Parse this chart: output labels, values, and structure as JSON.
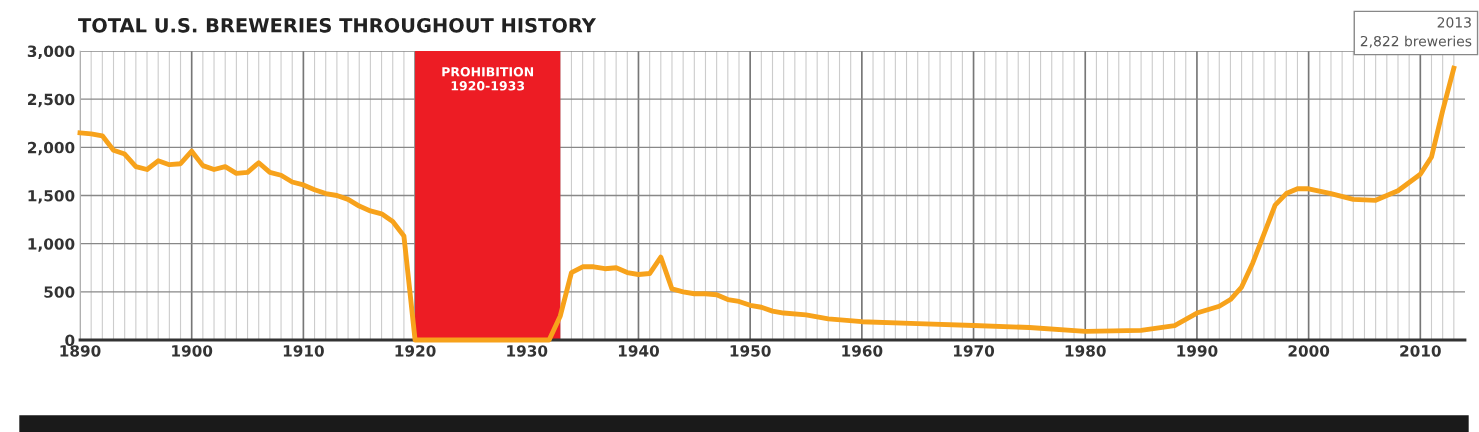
{
  "chart_data": {
    "type": "line",
    "title": "TOTAL U.S. BREWERIES THROUGHOUT HISTORY",
    "series": [
      {
        "color": "#f7a21b",
        "x": [
          1890,
          1891,
          1892,
          1893,
          1894,
          1895,
          1896,
          1897,
          1898,
          1899,
          1900,
          1901,
          1902,
          1903,
          1904,
          1905,
          1906,
          1907,
          1908,
          1909,
          1910,
          1911,
          1912,
          1913,
          1914,
          1915,
          1916,
          1917,
          1918,
          1919,
          1920,
          1925,
          1932,
          1933,
          1934,
          1935,
          1936,
          1937,
          1938,
          1939,
          1940,
          1941,
          1942,
          1943,
          1944,
          1945,
          1946,
          1947,
          1948,
          1949,
          1950,
          1951,
          1952,
          1953,
          1955,
          1957,
          1960,
          1965,
          1970,
          1975,
          1980,
          1985,
          1988,
          1990,
          1992,
          1993,
          1994,
          1995,
          1996,
          1997,
          1998,
          1999,
          2000,
          2002,
          2004,
          2006,
          2008,
          2010,
          2011,
          2012,
          2013
        ],
        "values": [
          2150,
          2140,
          2120,
          1970,
          1930,
          1800,
          1770,
          1860,
          1820,
          1830,
          1960,
          1810,
          1770,
          1800,
          1730,
          1740,
          1840,
          1740,
          1710,
          1640,
          1610,
          1560,
          1520,
          1500,
          1460,
          1390,
          1340,
          1310,
          1230,
          1080,
          0,
          0,
          0,
          250,
          700,
          760,
          760,
          740,
          750,
          700,
          680,
          690,
          860,
          530,
          500,
          480,
          480,
          470,
          420,
          400,
          360,
          340,
          300,
          280,
          260,
          220,
          190,
          170,
          150,
          130,
          90,
          100,
          150,
          280,
          350,
          420,
          550,
          800,
          1100,
          1400,
          1520,
          1570,
          1570,
          1520,
          1460,
          1450,
          1550,
          1720,
          1900,
          2380,
          2822
        ]
      }
    ],
    "xlim": [
      1890,
      2014
    ],
    "xticks": [
      {
        "value": 1890,
        "label": "1890"
      },
      {
        "value": 1891,
        "label": null
      },
      {
        "value": 1892,
        "label": null
      },
      {
        "value": 1893,
        "label": null
      },
      {
        "value": 1894,
        "label": null
      },
      {
        "value": 1895,
        "label": null
      },
      {
        "value": 1896,
        "label": null
      },
      {
        "value": 1897,
        "label": null
      },
      {
        "value": 1898,
        "label": null
      },
      {
        "value": 1899,
        "label": null
      },
      {
        "value": 1900,
        "label": "1900"
      },
      {
        "value": 1901,
        "label": null
      },
      {
        "value": 1902,
        "label": null
      },
      {
        "value": 1903,
        "label": null
      },
      {
        "value": 1904,
        "label": null
      },
      {
        "value": 1905,
        "label": null
      },
      {
        "value": 1906,
        "label": null
      },
      {
        "value": 1907,
        "label": null
      },
      {
        "value": 1908,
        "label": null
      },
      {
        "value": 1909,
        "label": null
      },
      {
        "value": 1910,
        "label": "1910"
      },
      {
        "value": 1911,
        "label": null
      },
      {
        "value": 1912,
        "label": null
      },
      {
        "value": 1913,
        "label": null
      },
      {
        "value": 1914,
        "label": null
      },
      {
        "value": 1915,
        "label": null
      },
      {
        "value": 1916,
        "label": null
      },
      {
        "value": 1917,
        "label": null
      },
      {
        "value": 1918,
        "label": null
      },
      {
        "value": 1919,
        "label": null
      },
      {
        "value": 1920,
        "label": "1920"
      },
      {
        "value": 1930,
        "label": "1930"
      },
      {
        "value": 1933,
        "label": null
      },
      {
        "value": 1934,
        "label": null
      },
      {
        "value": 1935,
        "label": null
      },
      {
        "value": 1936,
        "label": null
      },
      {
        "value": 1937,
        "label": null
      },
      {
        "value": 1938,
        "label": null
      },
      {
        "value": 1939,
        "label": null
      },
      {
        "value": 1940,
        "label": "1940"
      },
      {
        "value": 1941,
        "label": null
      },
      {
        "value": 1942,
        "label": null
      },
      {
        "value": 1943,
        "label": null
      },
      {
        "value": 1944,
        "label": null
      },
      {
        "value": 1945,
        "label": null
      },
      {
        "value": 1946,
        "label": null
      },
      {
        "value": 1947,
        "label": null
      },
      {
        "value": 1948,
        "label": null
      },
      {
        "value": 1949,
        "label": null
      },
      {
        "value": 1950,
        "label": "1950"
      },
      {
        "value": 1951,
        "label": null
      },
      {
        "value": 1952,
        "label": null
      },
      {
        "value": 1953,
        "label": null
      },
      {
        "value": 1954,
        "label": null
      },
      {
        "value": 1955,
        "label": null
      },
      {
        "value": 1956,
        "label": null
      },
      {
        "value": 1957,
        "label": null
      },
      {
        "value": 1958,
        "label": null
      },
      {
        "value": 1959,
        "label": null
      },
      {
        "value": 1960,
        "label": "1960"
      },
      {
        "value": 1961,
        "label": null
      },
      {
        "value": 1962,
        "label": null
      },
      {
        "value": 1963,
        "label": null
      },
      {
        "value": 1964,
        "label": null
      },
      {
        "value": 1965,
        "label": null
      },
      {
        "value": 1966,
        "label": null
      },
      {
        "value": 1967,
        "label": null
      },
      {
        "value": 1968,
        "label": null
      },
      {
        "value": 1969,
        "label": null
      },
      {
        "value": 1970,
        "label": "1970"
      },
      {
        "value": 1971,
        "label": null
      },
      {
        "value": 1972,
        "label": null
      },
      {
        "value": 1973,
        "label": null
      },
      {
        "value": 1974,
        "label": null
      },
      {
        "value": 1975,
        "label": null
      },
      {
        "value": 1976,
        "label": null
      },
      {
        "value": 1977,
        "label": null
      },
      {
        "value": 1978,
        "label": null
      },
      {
        "value": 1979,
        "label": null
      },
      {
        "value": 1980,
        "label": "1980"
      },
      {
        "value": 1981,
        "label": null
      },
      {
        "value": 1982,
        "label": null
      },
      {
        "value": 1983,
        "label": null
      },
      {
        "value": 1984,
        "label": null
      },
      {
        "value": 1985,
        "label": null
      },
      {
        "value": 1986,
        "label": null
      },
      {
        "value": 1987,
        "label": null
      },
      {
        "value": 1988,
        "label": null
      },
      {
        "value": 1989,
        "label": null
      },
      {
        "value": 1990,
        "label": "1990"
      },
      {
        "value": 1991,
        "label": null
      },
      {
        "value": 1992,
        "label": null
      },
      {
        "value": 1993,
        "label": null
      },
      {
        "value": 1994,
        "label": null
      },
      {
        "value": 1995,
        "label": null
      },
      {
        "value": 1996,
        "label": null
      },
      {
        "value": 1997,
        "label": null
      },
      {
        "value": 1998,
        "label": null
      },
      {
        "value": 1999,
        "label": null
      },
      {
        "value": 2000,
        "label": "2000"
      },
      {
        "value": 2001,
        "label": null
      },
      {
        "value": 2002,
        "label": null
      },
      {
        "value": 2003,
        "label": null
      },
      {
        "value": 2004,
        "label": null
      },
      {
        "value": 2005,
        "label": null
      },
      {
        "value": 2006,
        "label": null
      },
      {
        "value": 2007,
        "label": null
      },
      {
        "value": 2008,
        "label": null
      },
      {
        "value": 2009,
        "label": null
      },
      {
        "value": 2010,
        "label": "2010"
      },
      {
        "value": 2011,
        "label": null
      },
      {
        "value": 2012,
        "label": null
      },
      {
        "value": 2013,
        "label": null
      }
    ],
    "ylim": [
      0,
      3000
    ],
    "yticks": [
      0,
      {
        "value": 500,
        "label": "500"
      },
      {
        "value": 1000,
        "label": "1,000"
      },
      {
        "value": 1500,
        "label": "1,500"
      },
      {
        "value": 2000,
        "label": "2,000"
      },
      {
        "value": 2500,
        "label": "2,500"
      },
      {
        "value": 3000,
        "label": "3,000"
      }
    ],
    "bands": [
      {
        "axis": "x",
        "from": 1920,
        "to": 1933,
        "label": "PROHIBITION\n1920-1933",
        "color": "#ed1c24"
      }
    ],
    "annotations": [
      "2013\n2,822 breweries"
    ],
    "grid": true,
    "marker": "none",
    "line_style": "solid"
  }
}
